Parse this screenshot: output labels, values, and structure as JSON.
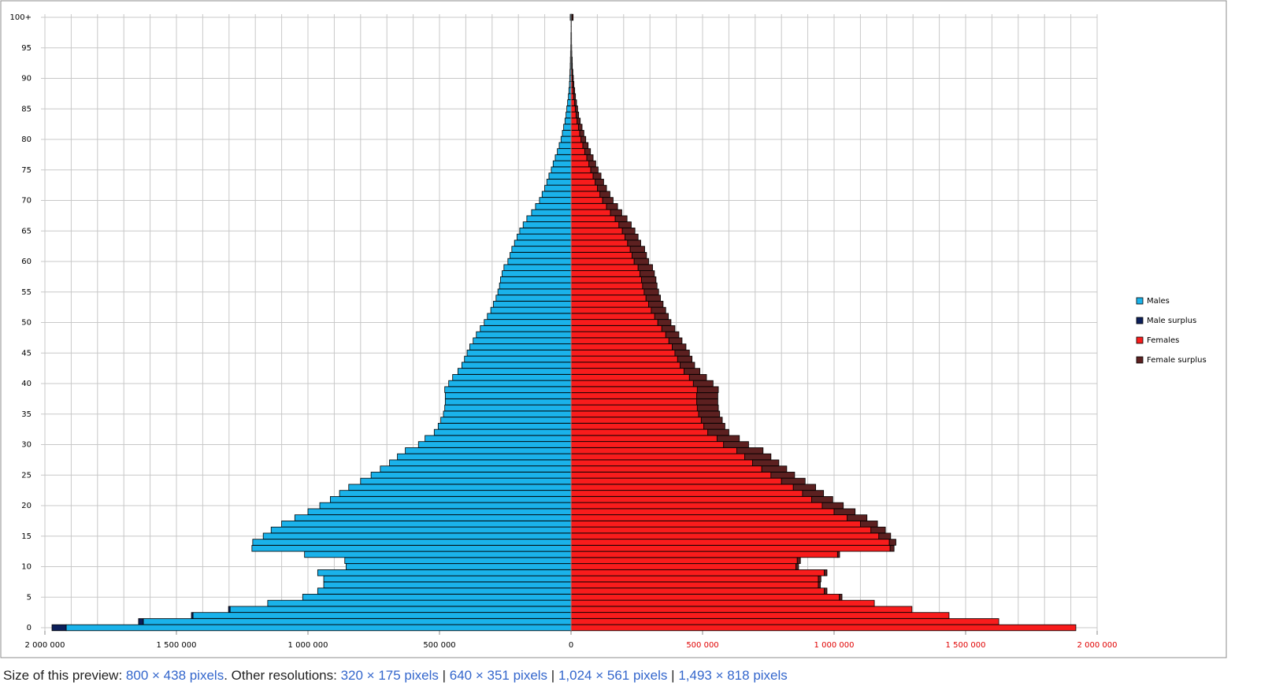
{
  "chart_data": {
    "type": "pyramid",
    "categories": [
      "0",
      null,
      null,
      null,
      null,
      "5",
      null,
      null,
      null,
      null,
      "10",
      null,
      null,
      null,
      null,
      "15",
      null,
      null,
      null,
      null,
      "20",
      null,
      null,
      null,
      null,
      "25",
      null,
      null,
      null,
      null,
      "30",
      null,
      null,
      null,
      null,
      "35",
      null,
      null,
      null,
      null,
      "40",
      null,
      null,
      null,
      null,
      "45",
      null,
      null,
      null,
      null,
      "50",
      null,
      null,
      null,
      null,
      "55",
      null,
      null,
      null,
      null,
      "60",
      null,
      null,
      null,
      null,
      "65",
      null,
      null,
      null,
      null,
      "70",
      null,
      null,
      null,
      null,
      "75",
      null,
      null,
      null,
      null,
      "80",
      null,
      null,
      null,
      null,
      "85",
      null,
      null,
      null,
      null,
      "90",
      null,
      null,
      null,
      null,
      "95",
      null,
      null,
      null,
      null,
      "100+"
    ],
    "series": [
      {
        "name": "Males",
        "color": "#1ab2ea",
        "values": [
          -1919000,
          -1626000,
          -1437000,
          -1296000,
          -1153000,
          -1020000,
          -963000,
          -940000,
          -940000,
          -963000,
          -855000,
          -860000,
          -1013000,
          -1213000,
          -1210000,
          -1170000,
          -1140000,
          -1100000,
          -1050000,
          -1000000,
          -955000,
          -915000,
          -880000,
          -845000,
          -800000,
          -760000,
          -725000,
          -690000,
          -660000,
          -630000,
          -580000,
          -555000,
          -520000,
          -505000,
          -495000,
          -485000,
          -480000,
          -478000,
          -478000,
          -480000,
          -465000,
          -450000,
          -430000,
          -415000,
          -405000,
          -395000,
          -385000,
          -372000,
          -360000,
          -345000,
          -330000,
          -318000,
          -305000,
          -295000,
          -285000,
          -278000,
          -272000,
          -268000,
          -262000,
          -255000,
          -240000,
          -232000,
          -225000,
          -215000,
          -205000,
          -195000,
          -182000,
          -168000,
          -150000,
          -135000,
          -120000,
          -110000,
          -100000,
          -92000,
          -84000,
          -75000,
          -68000,
          -60000,
          -52000,
          -45000,
          -38000,
          -33000,
          -28000,
          -23000,
          -19000,
          -16000,
          -13000,
          -10000,
          -8000,
          -6000,
          -5000,
          -4000,
          -3000,
          -2500,
          -2000,
          -1500,
          -1000,
          -1000,
          -500,
          -500,
          -3000
        ]
      },
      {
        "name": "Male surplus",
        "color": "#0c1f5a",
        "values": [
          -54000,
          -18000,
          -6000,
          -6000,
          0,
          0,
          0,
          0,
          0,
          0,
          0,
          0,
          0,
          0,
          0,
          0,
          0,
          0,
          0,
          0,
          0,
          0,
          0,
          0,
          0,
          0,
          0,
          0,
          0,
          0,
          0,
          0,
          0,
          0,
          0,
          0,
          0,
          0,
          0,
          0,
          0,
          0,
          0,
          0,
          0,
          0,
          0,
          0,
          0,
          0,
          0,
          0,
          0,
          0,
          0,
          0,
          0,
          0,
          0,
          0,
          0,
          0,
          0,
          0,
          0,
          0,
          0,
          0,
          0,
          0,
          0,
          0,
          0,
          0,
          0,
          0,
          0,
          0,
          0,
          0,
          0,
          0,
          0,
          0,
          0,
          0,
          0,
          0,
          0,
          0,
          0,
          0,
          0,
          0,
          0,
          0,
          0,
          0,
          0,
          0,
          0
        ]
      },
      {
        "name": "Females",
        "color": "#f81c1c",
        "values": [
          1919000,
          1626000,
          1437000,
          1296000,
          1153000,
          1020000,
          963000,
          940000,
          940000,
          963000,
          855000,
          860000,
          1013000,
          1213000,
          1210000,
          1170000,
          1140000,
          1100000,
          1050000,
          1000000,
          955000,
          915000,
          880000,
          845000,
          800000,
          760000,
          725000,
          690000,
          660000,
          630000,
          580000,
          555000,
          520000,
          505000,
          495000,
          485000,
          480000,
          478000,
          478000,
          480000,
          465000,
          450000,
          430000,
          415000,
          405000,
          395000,
          385000,
          372000,
          360000,
          345000,
          330000,
          318000,
          305000,
          295000,
          285000,
          278000,
          272000,
          268000,
          262000,
          255000,
          240000,
          232000,
          225000,
          215000,
          205000,
          195000,
          182000,
          168000,
          150000,
          135000,
          120000,
          110000,
          100000,
          92000,
          84000,
          75000,
          68000,
          60000,
          52000,
          45000,
          38000,
          33000,
          28000,
          23000,
          19000,
          16000,
          13000,
          10000,
          8000,
          6000,
          5000,
          4000,
          3000,
          2500,
          2000,
          1500,
          1000,
          1000,
          500,
          500,
          3000
        ]
      },
      {
        "name": "Female surplus",
        "color": "#5c2020",
        "values": [
          0,
          0,
          0,
          0,
          0,
          10000,
          10000,
          8000,
          10000,
          10000,
          10000,
          12000,
          8000,
          15000,
          25000,
          45000,
          55000,
          65000,
          75000,
          80000,
          80000,
          80000,
          80000,
          85000,
          90000,
          90000,
          95000,
          100000,
          100000,
          100000,
          95000,
          85000,
          80000,
          80000,
          80000,
          80000,
          80000,
          80000,
          80000,
          80000,
          75000,
          65000,
          60000,
          55000,
          55000,
          55000,
          52000,
          50000,
          50000,
          50000,
          50000,
          52000,
          55000,
          55000,
          55000,
          55000,
          55000,
          55000,
          55000,
          55000,
          55000,
          55000,
          55000,
          50000,
          50000,
          48000,
          47000,
          45000,
          43000,
          42000,
          40000,
          38000,
          35000,
          32000,
          30000,
          28000,
          26000,
          24000,
          22000,
          20000,
          18000,
          16000,
          14000,
          12000,
          10000,
          9000,
          8000,
          7000,
          6000,
          5000,
          4000,
          3000,
          2000,
          2000,
          1000,
          1000,
          1000,
          1000,
          1000,
          1000,
          5000
        ]
      }
    ],
    "xlim": [
      -2000000,
      2000000
    ],
    "xticks": [
      {
        "value": -2000000,
        "label": "2 000 000"
      },
      {
        "value": -1500000,
        "label": "1 500 000"
      },
      {
        "value": -1000000,
        "label": "1 000 000"
      },
      {
        "value": -500000,
        "label": "500 000"
      },
      0,
      {
        "value": 500000,
        "label": "500 000"
      },
      {
        "value": 1000000,
        "label": "1 000 000"
      },
      {
        "value": 1500000,
        "label": "1 500 000"
      },
      {
        "value": 2000000,
        "label": "2 000 000"
      }
    ],
    "x_grid_step": 100000,
    "grid": true,
    "legend": "right",
    "left_tick_label_color": "#000000",
    "right_tick_label_color": "#e00000"
  },
  "caption": {
    "prefix": "Size of this preview:",
    "preview": "800 × 438 pixels",
    "other_label": ". Other resolutions:",
    "separator": "|",
    "resolutions": [
      "320 × 175 pixels",
      "640 × 351 pixels",
      "1,024 × 561 pixels",
      "1,493 × 818 pixels"
    ]
  }
}
